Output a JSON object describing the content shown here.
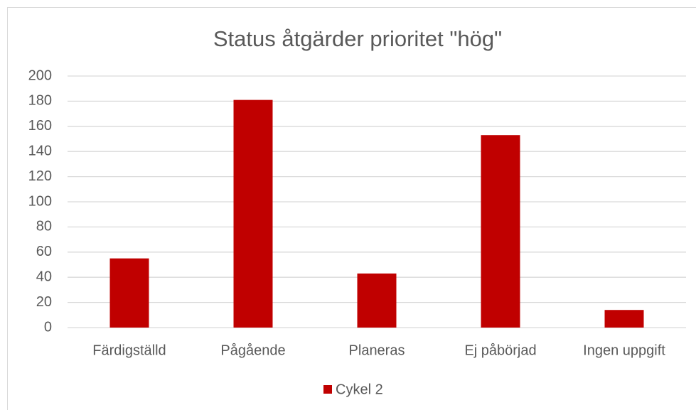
{
  "chart_data": {
    "type": "bar",
    "title": "Status åtgärder prioritet \"hög\"",
    "categories": [
      "Färdigställd",
      "Pågående",
      "Planeras",
      "Ej påbörjad",
      "Ingen uppgift"
    ],
    "series": [
      {
        "name": "Cykel 2",
        "color": "#c00000",
        "values": [
          55,
          181,
          43,
          153,
          14
        ]
      }
    ],
    "ylim": [
      0,
      200
    ],
    "yticks": [
      0,
      20,
      40,
      60,
      80,
      100,
      120,
      140,
      160,
      180,
      200
    ],
    "grid": true,
    "legend": "bottom"
  }
}
